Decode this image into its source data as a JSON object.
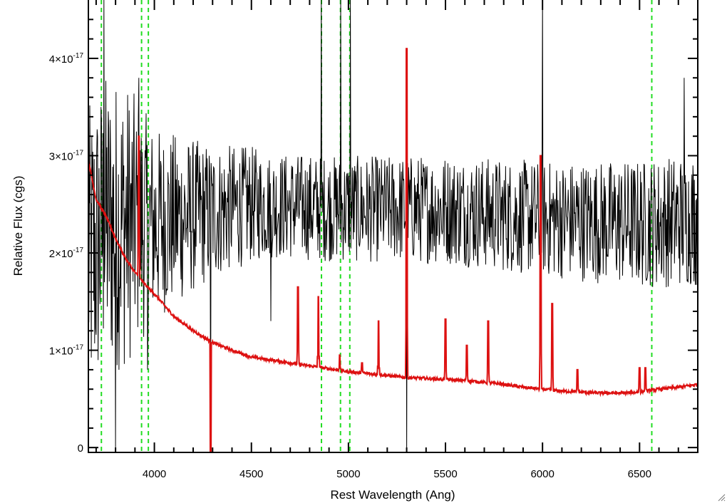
{
  "chart_data": {
    "type": "line",
    "title": "",
    "xlabel": "Rest Wavelength (Ang)",
    "ylabel": "Relative Flux (cgs)",
    "xlim": [
      3660,
      6800
    ],
    "ylim": [
      -0.05,
      4.6
    ],
    "y_scale_factor": "×10⁻¹⁷",
    "x_ticks": [
      4000,
      4500,
      5000,
      5500,
      6000,
      6500
    ],
    "x_tick_labels": [
      "4000",
      "4500",
      "5000",
      "5500",
      "6000",
      "6500"
    ],
    "y_ticks": [
      0,
      1,
      2,
      3,
      4
    ],
    "y_tick_labels": [
      {
        "mantissa": "0",
        "exponent": ""
      },
      {
        "mantissa": "1×10",
        "exponent": "-17"
      },
      {
        "mantissa": "2×10",
        "exponent": "-17"
      },
      {
        "mantissa": "3×10",
        "exponent": "-17"
      },
      {
        "mantissa": "4×10",
        "exponent": "-17"
      }
    ],
    "grid": false,
    "legend": "none",
    "series": [
      {
        "color": "#000000",
        "style": "noisy-spectrum",
        "continuum_points": [
          [
            3660,
            1.9
          ],
          [
            3750,
            2.3
          ],
          [
            4000,
            2.3
          ],
          [
            4500,
            2.5
          ],
          [
            5000,
            2.45
          ],
          [
            5500,
            2.45
          ],
          [
            6000,
            2.35
          ],
          [
            6500,
            2.3
          ],
          [
            6800,
            2.35
          ]
        ],
        "noise_points": [
          [
            3660,
            1.6
          ],
          [
            3850,
            1.5
          ],
          [
            4000,
            1.0
          ],
          [
            4300,
            0.7
          ],
          [
            4600,
            0.55
          ],
          [
            5200,
            0.55
          ],
          [
            6000,
            0.6
          ],
          [
            6800,
            0.7
          ]
        ],
        "spikes": [
          [
            3740,
            4.6
          ],
          [
            3800,
            0.0
          ],
          [
            3920,
            3.8
          ],
          [
            3965,
            0.8
          ],
          [
            4290,
            0.0
          ],
          [
            4600,
            1.3
          ],
          [
            4860,
            4.6
          ],
          [
            4960,
            4.6
          ],
          [
            5010,
            4.6
          ],
          [
            5300,
            -0.05
          ],
          [
            6000,
            4.6
          ],
          [
            6730,
            3.8
          ]
        ]
      },
      {
        "color": "#dd1111",
        "style": "model",
        "continuum_points": [
          [
            3660,
            2.95
          ],
          [
            3700,
            2.55
          ],
          [
            3750,
            2.38
          ],
          [
            3800,
            2.15
          ],
          [
            3850,
            1.95
          ],
          [
            3900,
            1.8
          ],
          [
            3950,
            1.68
          ],
          [
            4000,
            1.58
          ],
          [
            4100,
            1.35
          ],
          [
            4200,
            1.2
          ],
          [
            4300,
            1.08
          ],
          [
            4400,
            1.0
          ],
          [
            4500,
            0.93
          ],
          [
            4600,
            0.9
          ],
          [
            4700,
            0.87
          ],
          [
            4800,
            0.84
          ],
          [
            4900,
            0.81
          ],
          [
            5000,
            0.78
          ],
          [
            5100,
            0.76
          ],
          [
            5200,
            0.74
          ],
          [
            5300,
            0.72
          ],
          [
            5400,
            0.71
          ],
          [
            5500,
            0.7
          ],
          [
            5600,
            0.69
          ],
          [
            5700,
            0.67
          ],
          [
            5800,
            0.65
          ],
          [
            5900,
            0.62
          ],
          [
            6000,
            0.6
          ],
          [
            6100,
            0.58
          ],
          [
            6200,
            0.57
          ],
          [
            6300,
            0.56
          ],
          [
            6400,
            0.56
          ],
          [
            6500,
            0.57
          ],
          [
            6600,
            0.6
          ],
          [
            6700,
            0.62
          ],
          [
            6800,
            0.65
          ]
        ],
        "lines": [
          [
            3920,
            3.2
          ],
          [
            4290,
            -0.05
          ],
          [
            4740,
            1.65
          ],
          [
            4845,
            1.55
          ],
          [
            4955,
            0.95
          ],
          [
            5070,
            0.87
          ],
          [
            5155,
            1.3
          ],
          [
            5300,
            4.1
          ],
          [
            5500,
            1.32
          ],
          [
            5610,
            1.05
          ],
          [
            5720,
            1.3
          ],
          [
            5990,
            3.0
          ],
          [
            6050,
            1.48
          ],
          [
            6180,
            0.8
          ],
          [
            6500,
            0.82
          ],
          [
            6530,
            0.82
          ]
        ]
      }
    ],
    "vertical_markers": {
      "color": "#22dd22",
      "style": "dashed",
      "x": [
        3727,
        3934,
        3969,
        4861,
        4959,
        5007,
        6563
      ]
    }
  }
}
